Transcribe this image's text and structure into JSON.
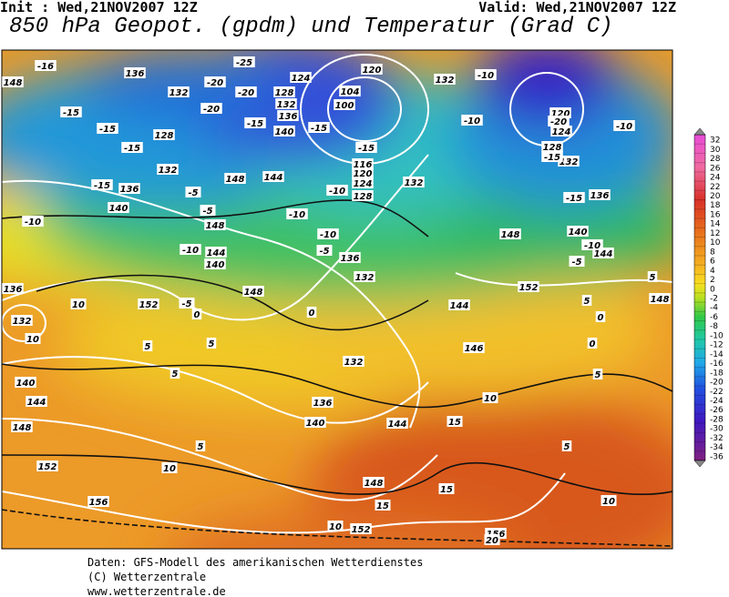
{
  "header": {
    "init": "Init : Wed,21NOV2007 12Z",
    "valid": "Valid: Wed,21NOV2007 12Z",
    "title": "850 hPa Geopot. (gpdm) und Temperatur (Grad C)"
  },
  "legend": {
    "labels": [
      32,
      30,
      28,
      26,
      24,
      22,
      20,
      18,
      16,
      14,
      12,
      10,
      8,
      6,
      4,
      2,
      0,
      -2,
      -4,
      -6,
      -8,
      -10,
      -12,
      -14,
      -16,
      -18,
      -20,
      -22,
      -24,
      -26,
      -28,
      -30,
      -32,
      -34,
      -36
    ]
  },
  "map": {
    "geopotential_labels": [
      148,
      136,
      132,
      128,
      132,
      136,
      140,
      148,
      144,
      140,
      152,
      148,
      136,
      132,
      140,
      144,
      148,
      152,
      156,
      140,
      136,
      132,
      132,
      136,
      144,
      148,
      152,
      156,
      152,
      148,
      140,
      144,
      148,
      136,
      132,
      128,
      124,
      120,
      100,
      104,
      120,
      124,
      128,
      132,
      136,
      140,
      116,
      120,
      124,
      128,
      132,
      132,
      144,
      146,
      144,
      148
    ],
    "temperature_labels": [
      -16,
      -15,
      -15,
      -15,
      -15,
      -10,
      -10,
      -5,
      0,
      10,
      10,
      5,
      5,
      5,
      -5,
      -5,
      -20,
      -20,
      -20,
      -25,
      -15,
      -10,
      -10,
      -5,
      0,
      -10,
      -15,
      -10,
      -10,
      -20,
      -15,
      -15,
      -10,
      -10,
      -5,
      5,
      5,
      0,
      0,
      5,
      10,
      15,
      10,
      10,
      15,
      15,
      20,
      10,
      5,
      5,
      -15
    ]
  },
  "footer": {
    "lines": [
      "Daten: GFS-Modell des amerikanischen Wetterdienstes",
      "(C) Wetterzentrale",
      "www.wetterzentrale.de"
    ]
  }
}
